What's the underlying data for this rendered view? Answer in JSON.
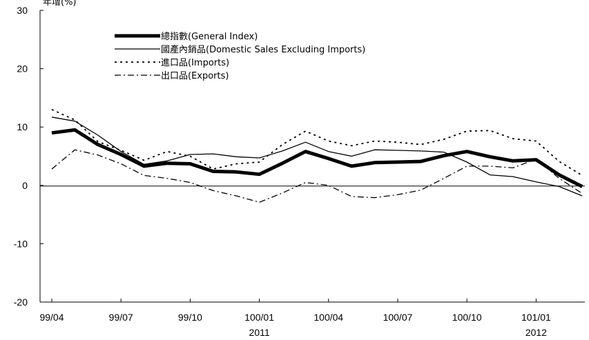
{
  "chart_data": {
    "type": "line",
    "title": "",
    "unit_label": "年增(%)",
    "xlabel": "",
    "ylabel": "",
    "ylim": [
      -20,
      30
    ],
    "y_ticks": [
      -20,
      -10,
      0,
      10,
      20,
      30
    ],
    "grid": false,
    "legend_position": "top-left",
    "x_tick_labels": [
      {
        "index": 0,
        "label": "99/04",
        "sub": ""
      },
      {
        "index": 3,
        "label": "99/07",
        "sub": ""
      },
      {
        "index": 6,
        "label": "99/10",
        "sub": ""
      },
      {
        "index": 9,
        "label": "100/01",
        "sub": "2011"
      },
      {
        "index": 12,
        "label": "100/04",
        "sub": ""
      },
      {
        "index": 15,
        "label": "100/07",
        "sub": ""
      },
      {
        "index": 18,
        "label": "100/10",
        "sub": ""
      },
      {
        "index": 21,
        "label": "101/01",
        "sub": "2012"
      }
    ],
    "categories": [
      "99/04",
      "99/05",
      "99/06",
      "99/07",
      "99/08",
      "99/09",
      "99/10",
      "99/11",
      "99/12",
      "100/01",
      "100/02",
      "100/03",
      "100/04",
      "100/05",
      "100/06",
      "100/07",
      "100/08",
      "100/09",
      "100/10",
      "100/11",
      "100/12",
      "101/01",
      "101/02",
      "101/03"
    ],
    "series": [
      {
        "name": "總指數(General Index)",
        "style": "thick",
        "values": [
          9.0,
          9.5,
          7.0,
          5.3,
          3.3,
          3.8,
          3.7,
          2.4,
          2.3,
          1.9,
          3.8,
          5.8,
          4.6,
          3.3,
          3.9,
          4.0,
          4.1,
          5.1,
          5.8,
          4.9,
          4.2,
          4.4,
          1.8,
          -0.2
        ]
      },
      {
        "name": "國產內銷品(Domestic Sales Excluding Imports)",
        "style": "solid",
        "values": [
          11.7,
          11.0,
          8.6,
          5.8,
          3.6,
          4.2,
          5.3,
          5.4,
          4.9,
          4.7,
          5.9,
          7.4,
          5.8,
          5.0,
          6.1,
          6.0,
          5.9,
          5.7,
          4.0,
          1.8,
          1.5,
          0.6,
          -0.2,
          -1.8
        ]
      },
      {
        "name": "進口品(Imports)",
        "style": "dotted",
        "values": [
          13.0,
          11.2,
          7.5,
          6.0,
          4.3,
          5.8,
          5.0,
          2.8,
          3.7,
          4.0,
          7.0,
          9.3,
          7.6,
          6.8,
          7.6,
          7.4,
          7.0,
          7.9,
          9.3,
          9.4,
          8.0,
          7.6,
          4.1,
          1.7
        ]
      },
      {
        "name": "出口品(Exports)",
        "style": "dashdot",
        "values": [
          2.8,
          6.1,
          5.2,
          3.7,
          1.7,
          1.2,
          0.5,
          -0.9,
          -1.8,
          -2.9,
          -1.3,
          0.5,
          0.0,
          -1.9,
          -2.1,
          -1.6,
          -0.8,
          1.2,
          3.3,
          3.3,
          3.0,
          4.5,
          1.2,
          -1.4
        ]
      }
    ]
  }
}
